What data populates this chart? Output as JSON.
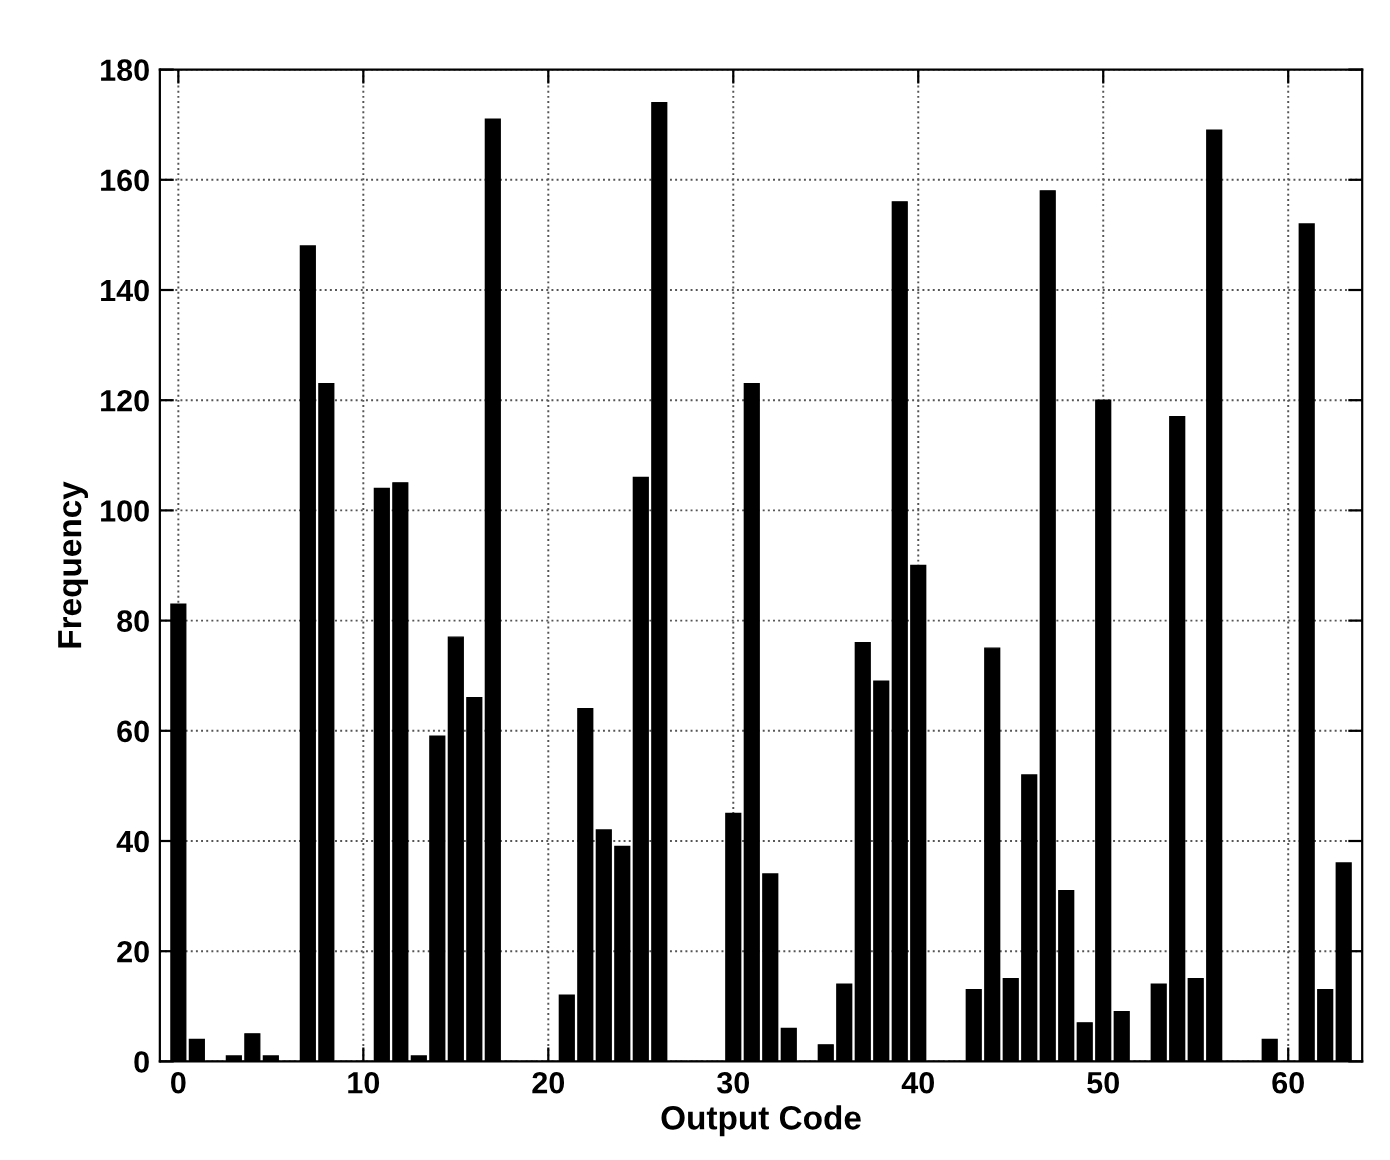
{
  "chart_data": {
    "type": "bar",
    "xlabel": "Output Code",
    "ylabel": "Frequency",
    "x": [
      0,
      1,
      2,
      3,
      4,
      5,
      6,
      7,
      8,
      9,
      10,
      11,
      12,
      13,
      14,
      15,
      16,
      17,
      18,
      19,
      20,
      21,
      22,
      23,
      24,
      25,
      26,
      27,
      28,
      29,
      30,
      31,
      32,
      33,
      34,
      35,
      36,
      37,
      38,
      39,
      40,
      41,
      42,
      43,
      44,
      45,
      46,
      47,
      48,
      49,
      50,
      51,
      52,
      53,
      54,
      55,
      56,
      57,
      58,
      59,
      60,
      61,
      62,
      63
    ],
    "values": [
      83,
      4,
      0,
      1,
      5,
      1,
      0,
      148,
      123,
      0,
      0,
      104,
      105,
      1,
      59,
      77,
      66,
      171,
      0,
      0,
      0,
      12,
      64,
      42,
      39,
      106,
      174,
      0,
      0,
      0,
      45,
      123,
      34,
      6,
      0,
      3,
      14,
      76,
      69,
      156,
      90,
      0,
      0,
      13,
      75,
      15,
      52,
      158,
      31,
      7,
      120,
      9,
      0,
      14,
      117,
      15,
      169,
      0,
      0,
      4,
      0,
      152,
      13,
      36
    ],
    "color": "#000000",
    "xlim": [
      -1,
      64
    ],
    "ylim": [
      0,
      180
    ],
    "xticks": [
      0,
      10,
      20,
      30,
      40,
      50,
      60
    ],
    "yticks": [
      0,
      20,
      40,
      60,
      80,
      100,
      120,
      140,
      160,
      180
    ],
    "grid": true,
    "line_style": "dotted"
  }
}
